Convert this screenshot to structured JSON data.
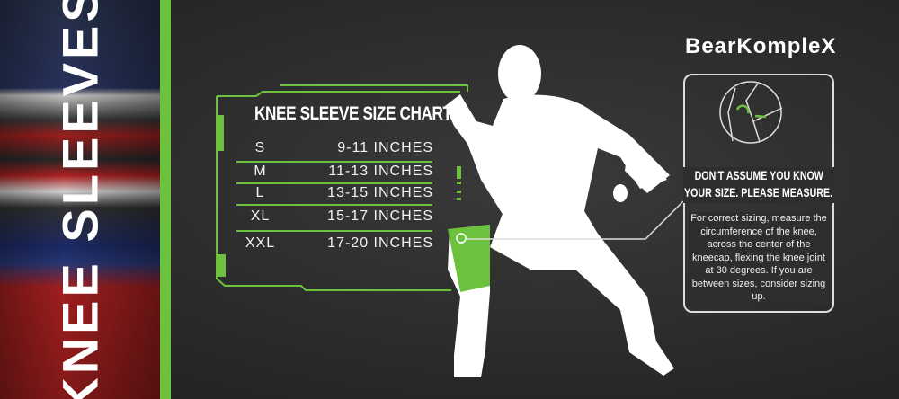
{
  "side_banner": {
    "text": "KNEE SLEEVES"
  },
  "brand": {
    "logo": "BearKompleX"
  },
  "size_chart": {
    "title": "KNEE SLEEVE SIZE CHART",
    "rows": [
      {
        "size": "S",
        "range": "9-11 INCHES"
      },
      {
        "size": "M",
        "range": "11-13 INCHES"
      },
      {
        "size": "L",
        "range": "13-15 INCHES"
      },
      {
        "size": "XL",
        "range": "15-17 INCHES"
      },
      {
        "size": "XXL",
        "range": "17-20 INCHES"
      }
    ]
  },
  "measure": {
    "icon": "knee-measure-icon",
    "headline_1": "DON'T ASSUME YOU KNOW",
    "headline_2": "YOUR SIZE. PLEASE MEASURE.",
    "body": "For correct sizing, measure the circumference of the knee, across the center of the kneecap, flexing the knee joint at 30 degrees. If you are between sizes, consider sizing up."
  },
  "colors": {
    "accent": "#6cc13d",
    "background": "#2b2b2b",
    "figure": "#ffffff"
  }
}
